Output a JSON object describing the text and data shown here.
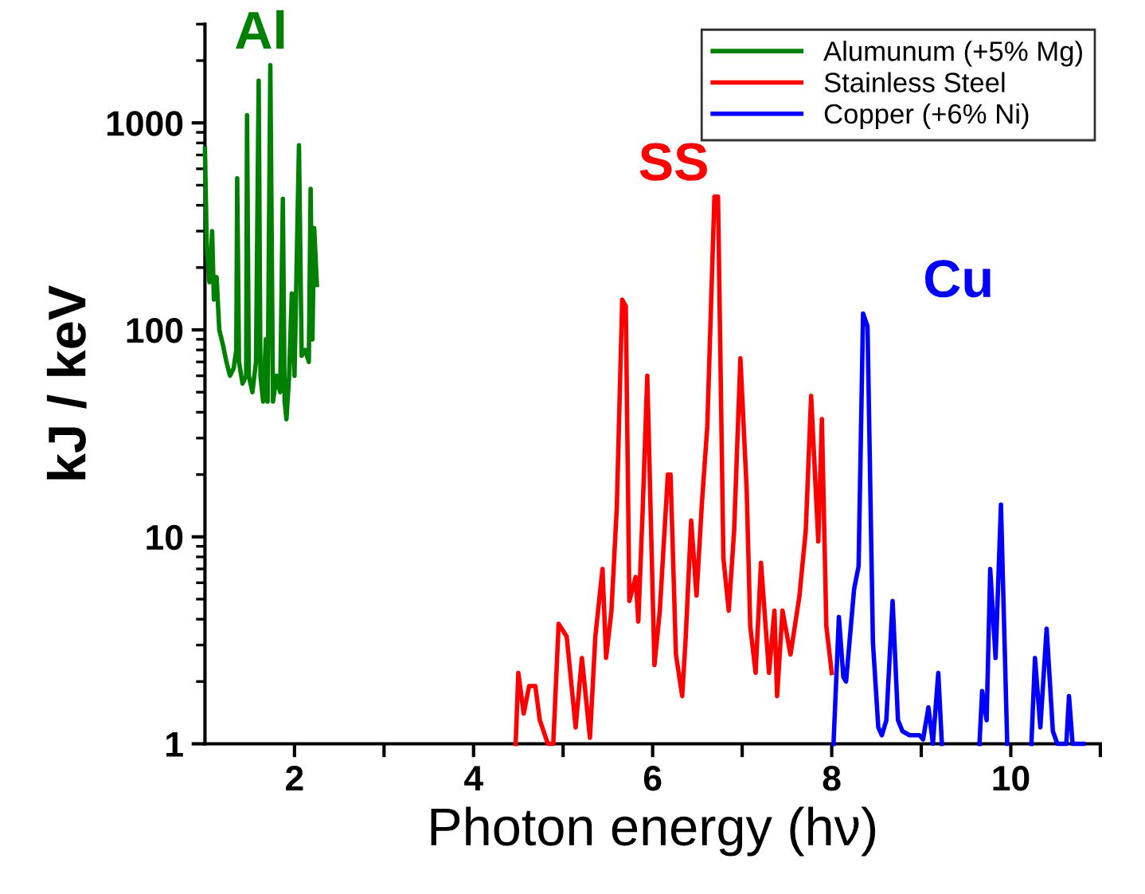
{
  "chart_data": {
    "type": "line",
    "xlabel": "Photon energy (hν)",
    "ylabel": "kJ / keV",
    "log": "y",
    "xlim": [
      1,
      11
    ],
    "ylim": [
      1,
      3000
    ],
    "xticks": [
      2,
      {
        "value": 3,
        "label": null
      },
      4,
      {
        "value": 5,
        "label": null
      },
      6,
      {
        "value": 7,
        "label": null
      },
      8,
      {
        "value": 9,
        "label": null
      },
      10,
      {
        "value": 11,
        "label": null
      }
    ],
    "yticks": [
      1,
      10,
      100,
      1000
    ],
    "grid": false,
    "legend": "top right",
    "marker": "none",
    "line_style": "solid",
    "annotations": [
      "Al",
      "SS",
      "Cu"
    ],
    "series": [
      {
        "name": "Alumunum (+5% Mg)",
        "color": "#008000",
        "x": [
          1.0,
          1.02,
          1.05,
          1.08,
          1.1,
          1.13,
          1.16,
          1.2,
          1.24,
          1.28,
          1.32,
          1.35,
          1.36,
          1.38,
          1.42,
          1.46,
          1.47,
          1.49,
          1.53,
          1.57,
          1.6,
          1.62,
          1.65,
          1.68,
          1.7,
          1.73,
          1.76,
          1.8,
          1.84,
          1.87,
          1.89,
          1.91,
          1.94,
          1.97,
          2.0,
          2.05,
          2.08,
          2.12,
          2.16,
          2.18,
          2.2,
          2.22,
          2.25
        ],
        "values": [
          750,
          250,
          170,
          300,
          140,
          180,
          100,
          85,
          70,
          60,
          65,
          80,
          540,
          70,
          55,
          60,
          1090,
          60,
          50,
          70,
          1600,
          60,
          45,
          90,
          45,
          1900,
          45,
          60,
          50,
          430,
          45,
          37,
          60,
          150,
          60,
          780,
          75,
          80,
          70,
          480,
          90,
          310,
          165
        ]
      },
      {
        "name": "Stainless Steel",
        "color": "#ff0000",
        "x": [
          4.47,
          4.5,
          4.56,
          4.62,
          4.69,
          4.74,
          4.83,
          4.89,
          4.95,
          5.04,
          5.14,
          5.21,
          5.3,
          5.36,
          5.44,
          5.48,
          5.54,
          5.6,
          5.66,
          5.7,
          5.74,
          5.81,
          5.84,
          5.89,
          5.94,
          6.02,
          6.08,
          6.17,
          6.2,
          6.26,
          6.33,
          6.37,
          6.43,
          6.49,
          6.55,
          6.61,
          6.69,
          6.73,
          6.79,
          6.85,
          6.91,
          6.98,
          7.05,
          7.09,
          7.15,
          7.21,
          7.3,
          7.36,
          7.39,
          7.45,
          7.54,
          7.64,
          7.71,
          7.77,
          7.85,
          7.89,
          7.94,
          8.0
        ],
        "values": [
          1.0,
          2.2,
          1.4,
          1.9,
          1.9,
          1.3,
          1.0,
          1.0,
          3.8,
          3.3,
          1.2,
          2.6,
          1.07,
          3.3,
          7.0,
          2.6,
          4.4,
          14,
          140,
          130,
          4.9,
          6.4,
          3.9,
          14,
          60,
          2.4,
          4.4,
          20,
          20,
          2.7,
          1.7,
          3.3,
          12,
          5.2,
          14.5,
          34,
          440,
          440,
          7.9,
          4.4,
          10.7,
          73,
          17,
          3.7,
          2.2,
          7.5,
          2.2,
          4.4,
          1.7,
          4.4,
          2.7,
          5.2,
          10.7,
          48,
          9.5,
          37,
          3.7,
          2.2
        ]
      },
      {
        "name": "Copper (+6% Ni)",
        "color": "#0000ff",
        "x": [
          8.02,
          8.08,
          8.13,
          8.16,
          8.25,
          8.3,
          8.35,
          8.4,
          8.46,
          8.52,
          8.56,
          8.61,
          8.68,
          8.74,
          8.79,
          8.87,
          8.98,
          9.02,
          9.08,
          9.13,
          9.19,
          9.23,
          9.45,
          9.65,
          9.68,
          9.73,
          9.77,
          9.83,
          9.89,
          9.96,
          10.1,
          10.23,
          10.27,
          10.33,
          10.4,
          10.47,
          10.52,
          10.62,
          10.65,
          10.69,
          10.81
        ],
        "values": [
          1.0,
          4.1,
          2.1,
          2.0,
          5.6,
          7.2,
          120,
          104,
          3.1,
          1.2,
          1.1,
          1.3,
          4.9,
          1.3,
          1.15,
          1.1,
          1.1,
          1.05,
          1.5,
          1.0,
          2.2,
          1.0,
          null,
          1.0,
          1.8,
          1.3,
          7.0,
          2.6,
          14.3,
          1.0,
          null,
          1.0,
          2.6,
          1.2,
          3.6,
          1.15,
          1.0,
          1.0,
          1.7,
          1.0,
          1.0
        ]
      }
    ]
  }
}
